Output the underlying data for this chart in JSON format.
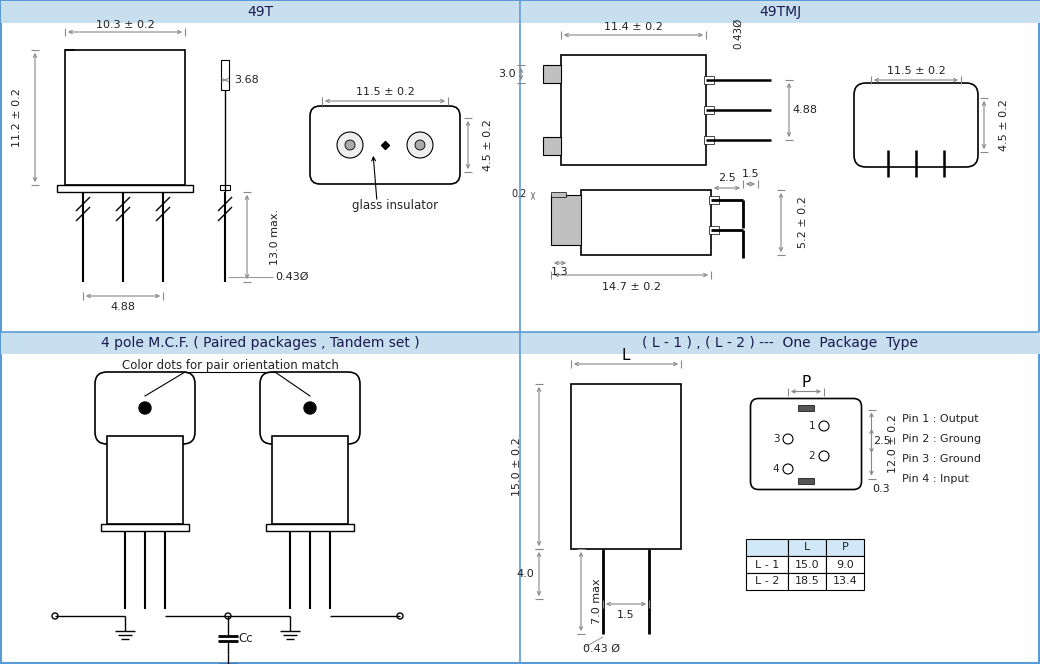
{
  "title_49T": "49T",
  "title_49TMJ": "49TMJ",
  "title_4pole": "4 pole M.C.F. ( Paired packages , Tandem set )",
  "title_L1L2": "( L - 1 ) , ( L - 2 ) ---  One  Package  Type",
  "header_bg": "#c8dff0",
  "border_color": "#5b9bd5",
  "dim_color": "#999999",
  "gray_fill": "#c0c0c0",
  "white_fill": "#ffffff",
  "font_size": 8,
  "title_font_size": 10
}
